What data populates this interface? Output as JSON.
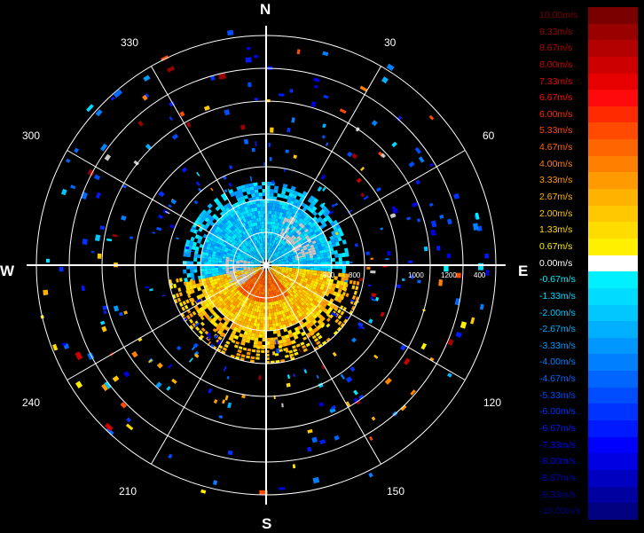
{
  "compass": {
    "north": "N",
    "south": "S",
    "east": "E",
    "west": "W"
  },
  "azimuth_labels": [
    {
      "text": "30",
      "deg": 30
    },
    {
      "text": "60",
      "deg": 60
    },
    {
      "text": "120",
      "deg": 120
    },
    {
      "text": "150",
      "deg": 150
    },
    {
      "text": "210",
      "deg": 210
    },
    {
      "text": "240",
      "deg": 240
    },
    {
      "text": "300",
      "deg": 300
    },
    {
      "text": "330",
      "deg": 330
    }
  ],
  "range_labels": [
    "800",
    "800",
    "1000",
    "1200",
    "400"
  ],
  "legend": [
    {
      "label": "10.00m/s",
      "color": "#7a0000"
    },
    {
      "label": "9.33m/s",
      "color": "#990000"
    },
    {
      "label": "8.67m/s",
      "color": "#b30000"
    },
    {
      "label": "8.00m/s",
      "color": "#cc0000"
    },
    {
      "label": "7.33m/s",
      "color": "#e60000"
    },
    {
      "label": "6.67m/s",
      "color": "#ff0a0a"
    },
    {
      "label": "6.00m/s",
      "color": "#ff2a00"
    },
    {
      "label": "5.33m/s",
      "color": "#ff4a00"
    },
    {
      "label": "4.67m/s",
      "color": "#ff6600"
    },
    {
      "label": "4.00m/s",
      "color": "#ff8000"
    },
    {
      "label": "3.33m/s",
      "color": "#ff9a00"
    },
    {
      "label": "2.67m/s",
      "color": "#ffb300"
    },
    {
      "label": "2.00m/s",
      "color": "#ffc800"
    },
    {
      "label": "1.33m/s",
      "color": "#ffdc00"
    },
    {
      "label": "0.67m/s",
      "color": "#fff000"
    },
    {
      "label": "0.00m/s",
      "color": "#ffffff"
    },
    {
      "label": "-0.67m/s",
      "color": "#00f0ff"
    },
    {
      "label": "-1.33m/s",
      "color": "#00dcff"
    },
    {
      "label": "-2.00m/s",
      "color": "#00c8ff"
    },
    {
      "label": "-2.67m/s",
      "color": "#00b0ff"
    },
    {
      "label": "-3.33m/s",
      "color": "#0098ff"
    },
    {
      "label": "-4.00m/s",
      "color": "#0080ff"
    },
    {
      "label": "-4.67m/s",
      "color": "#0066ff"
    },
    {
      "label": "-5.33m/s",
      "color": "#004cff"
    },
    {
      "label": "-6.00m/s",
      "color": "#0033ff"
    },
    {
      "label": "-6.67m/s",
      "color": "#001aff"
    },
    {
      "label": "-7.33m/s",
      "color": "#0000ff"
    },
    {
      "label": "-8.00m/s",
      "color": "#0000e0"
    },
    {
      "label": "-8.67m/s",
      "color": "#0000c0"
    },
    {
      "label": "-9.33m/s",
      "color": "#0000a0"
    },
    {
      "label": "-10.00m/s",
      "color": "#000080"
    }
  ]
}
